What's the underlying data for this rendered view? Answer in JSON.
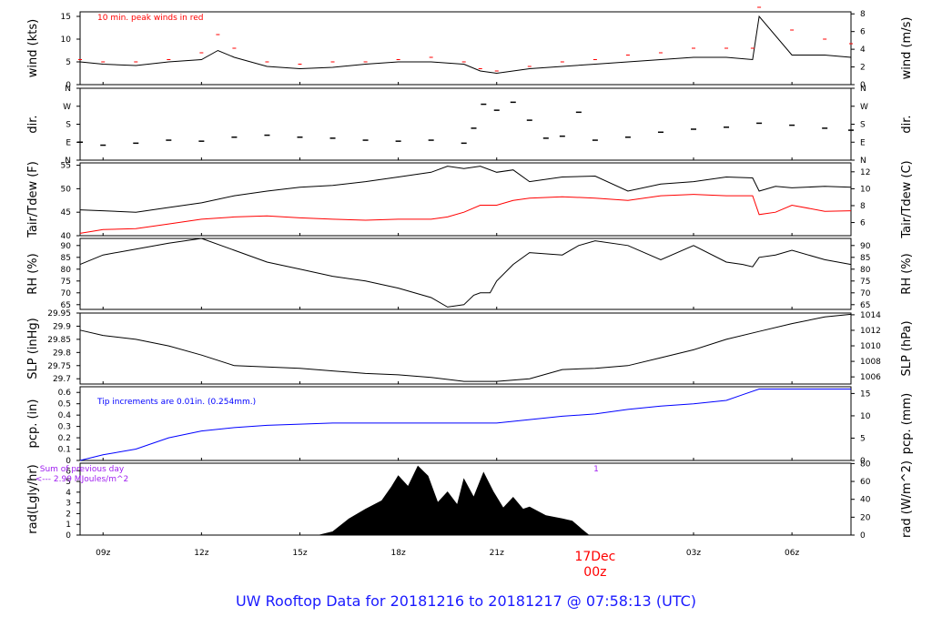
{
  "title": "UW Rooftop Data for 20181216  to  20181217 @ 07:58:13  (UTC)",
  "colors": {
    "series": "#000000",
    "dew": "#ff0000",
    "peak": "#ff0000",
    "pcp": "#0000ff",
    "rad": "#000000",
    "title": "#1a1aff",
    "rad_note": "#a020f0",
    "date": "#ff0000"
  },
  "chart_data": [
    {
      "type": "line",
      "panel": "wind",
      "ylabel": "wind (kts)",
      "ylabel_right": "wind (m/s)",
      "ylim": [
        0,
        16
      ],
      "yticks": [
        0,
        5,
        10,
        15
      ],
      "yticks_right": [
        0,
        2,
        4,
        6,
        8
      ],
      "ylim_right": [
        0,
        8.23
      ],
      "annotation": "10 min. peak winds in red",
      "x_hours": [
        8.3,
        9,
        10,
        11,
        12,
        12.5,
        13,
        14,
        15,
        16,
        17,
        18,
        19,
        20,
        20.5,
        21,
        22,
        23,
        24,
        25,
        26,
        27,
        28,
        28.8,
        29,
        30,
        31,
        31.8
      ],
      "series": [
        {
          "values": [
            5,
            4.5,
            4.2,
            5,
            5.5,
            7.5,
            6,
            4,
            3.5,
            3.8,
            4.5,
            5,
            5,
            4.5,
            3,
            2.5,
            3.5,
            4,
            4.5,
            5,
            5.5,
            6,
            6,
            5.5,
            15,
            6.5,
            6.5,
            6
          ]
        },
        {
          "name": "10 min. peak winds",
          "values": [
            5.5,
            5,
            5,
            5.5,
            7,
            11,
            8,
            5,
            4.5,
            5,
            5,
            5.5,
            6,
            5,
            3.5,
            3,
            4,
            5,
            5.5,
            6.5,
            7,
            8,
            8,
            8,
            17,
            12,
            10,
            9
          ]
        }
      ]
    },
    {
      "type": "scatter",
      "panel": "dir",
      "ylabel": "dir.",
      "ylabel_right": "dir.",
      "yticks": [
        "N",
        "E",
        "S",
        "W",
        "N"
      ],
      "ylim": [
        0,
        360
      ],
      "x_hours": [
        8.3,
        9,
        10,
        11,
        12,
        13,
        14,
        15,
        16,
        17,
        18,
        19,
        20,
        20.3,
        20.6,
        21,
        21.5,
        22,
        22.5,
        23,
        23.5,
        24,
        25,
        26,
        27,
        28,
        29,
        30,
        31,
        31.8
      ],
      "values": [
        90,
        75,
        85,
        100,
        95,
        115,
        125,
        115,
        110,
        100,
        95,
        100,
        85,
        160,
        280,
        250,
        290,
        200,
        110,
        120,
        240,
        100,
        115,
        140,
        155,
        165,
        185,
        175,
        160,
        150
      ]
    },
    {
      "type": "line",
      "panel": "temp",
      "ylabel": "Tair/Tdew (F)",
      "ylabel_right": "Tair/Tdew (C)",
      "ylim": [
        40,
        55.5
      ],
      "yticks": [
        40,
        45,
        50,
        55
      ],
      "yticks_right": [
        6,
        8,
        10,
        12
      ],
      "x_hours": [
        8.3,
        9,
        10,
        11,
        12,
        13,
        14,
        15,
        16,
        17,
        18,
        19,
        19.5,
        20,
        20.5,
        21,
        21.5,
        22,
        23,
        24,
        25,
        26,
        27,
        28,
        28.8,
        29,
        29.5,
        30,
        31,
        31.8
      ],
      "series": [
        {
          "name": "Tair",
          "values": [
            45.5,
            45.3,
            45,
            46,
            47,
            48.5,
            49.5,
            50.3,
            50.7,
            51.5,
            52.5,
            53.5,
            54.8,
            54.3,
            54.8,
            53.5,
            54,
            51.5,
            52.5,
            52.7,
            49.5,
            51,
            51.5,
            52.5,
            52.3,
            49.5,
            50.5,
            50.2,
            50.5,
            50.3
          ]
        },
        {
          "name": "Tdew",
          "values": [
            40.5,
            41.3,
            41.5,
            42.5,
            43.5,
            44,
            44.2,
            43.8,
            43.5,
            43.3,
            43.5,
            43.5,
            44,
            45,
            46.5,
            46.5,
            47.5,
            48,
            48.3,
            48,
            47.5,
            48.5,
            48.8,
            48.5,
            48.5,
            44.5,
            45,
            46.5,
            45.2,
            45.3
          ]
        }
      ]
    },
    {
      "type": "line",
      "panel": "rh",
      "ylabel": "RH (%)",
      "ylabel_right": "RH (%)",
      "ylim": [
        63,
        93
      ],
      "yticks": [
        65,
        70,
        75,
        80,
        85,
        90
      ],
      "x_hours": [
        8.3,
        9,
        10,
        11,
        12,
        13,
        14,
        15,
        16,
        17,
        18,
        19,
        19.5,
        20,
        20.3,
        20.5,
        20.8,
        21,
        21.5,
        22,
        23,
        23.5,
        24,
        25,
        26,
        27,
        28,
        28.5,
        28.8,
        29,
        29.5,
        30,
        31,
        31.8
      ],
      "values": [
        82,
        86,
        88.5,
        91,
        93,
        88,
        83,
        80,
        77,
        75,
        72,
        68,
        64,
        65,
        69,
        70,
        70,
        75,
        82,
        87,
        86,
        90,
        92,
        90,
        84,
        90,
        83,
        82,
        81,
        85,
        86,
        88,
        84,
        82
      ]
    },
    {
      "type": "line",
      "panel": "slp",
      "ylabel": "SLP (inHg)",
      "ylabel_right": "SLP (hPa)",
      "ylim": [
        29.68,
        29.95
      ],
      "yticks": [
        29.7,
        29.75,
        29.8,
        29.85,
        29.9,
        29.95
      ],
      "yticks_right": [
        1006,
        1008,
        1010,
        1012,
        1014
      ],
      "x_hours": [
        8.3,
        9,
        10,
        11,
        12,
        13,
        14,
        15,
        16,
        17,
        18,
        19,
        20,
        21,
        22,
        23,
        24,
        25,
        26,
        27,
        28,
        29,
        30,
        31,
        31.8
      ],
      "values": [
        29.885,
        29.865,
        29.85,
        29.825,
        29.79,
        29.75,
        29.745,
        29.74,
        29.73,
        29.72,
        29.715,
        29.705,
        29.69,
        29.69,
        29.7,
        29.735,
        29.74,
        29.75,
        29.78,
        29.81,
        29.85,
        29.88,
        29.91,
        29.935,
        29.945
      ]
    },
    {
      "type": "line",
      "panel": "pcp",
      "ylabel": "pcp. (in)",
      "ylabel_right": "pcp. (mm)",
      "ylim": [
        0,
        0.65
      ],
      "yticks": [
        0,
        0.1,
        0.2,
        0.3,
        0.4,
        0.5,
        0.6
      ],
      "yticks_right": [
        0,
        5,
        10,
        15
      ],
      "annotation": "Tip increments are 0.01in. (0.254mm.)",
      "x_hours": [
        8.3,
        9,
        10,
        11,
        12,
        13,
        14,
        15,
        16,
        17,
        18,
        19,
        20,
        21,
        22,
        23,
        24,
        25,
        26,
        27,
        28,
        28.5,
        29,
        30,
        31,
        31.8
      ],
      "values": [
        0,
        0.05,
        0.1,
        0.2,
        0.26,
        0.29,
        0.31,
        0.32,
        0.33,
        0.33,
        0.33,
        0.33,
        0.33,
        0.33,
        0.36,
        0.39,
        0.41,
        0.45,
        0.48,
        0.5,
        0.53,
        0.58,
        0.63,
        0.63,
        0.63,
        0.63
      ]
    },
    {
      "type": "area",
      "panel": "rad",
      "ylabel": "rad(Lgly/hr)",
      "ylabel_right": "rad (W/m^2)",
      "ylim": [
        0,
        6.7
      ],
      "yticks": [
        0,
        1,
        2,
        3,
        4,
        5,
        6
      ],
      "yticks_right": [
        0,
        20,
        40,
        60,
        80
      ],
      "note_line1": "Sum of previous day",
      "note_line2": "<--- 2.99 MJoules/m^2",
      "marker": "1",
      "x_hours": [
        15.6,
        16,
        16.5,
        17,
        17.5,
        17.8,
        18,
        18.3,
        18.6,
        18.9,
        19.2,
        19.5,
        19.8,
        20,
        20.3,
        20.6,
        20.9,
        21.2,
        21.5,
        21.8,
        22,
        22.5,
        23,
        23.3,
        23.6,
        23.8
      ],
      "values": [
        0,
        0.3,
        1.5,
        2.4,
        3.2,
        4.5,
        5.5,
        4.5,
        6.4,
        5.5,
        3,
        4,
        2.8,
        5.2,
        3.5,
        5.8,
        4,
        2.5,
        3.5,
        2.4,
        2.6,
        1.8,
        1.5,
        1.3,
        0.5,
        0
      ]
    }
  ],
  "x_axis": {
    "ticks": [
      {
        "hour": 9,
        "label": "09z"
      },
      {
        "hour": 12,
        "label": "12z"
      },
      {
        "hour": 15,
        "label": "15z"
      },
      {
        "hour": 18,
        "label": "18z"
      },
      {
        "hour": 21,
        "label": "21z"
      },
      {
        "hour": 27,
        "label": "03z"
      },
      {
        "hour": 30,
        "label": "06z"
      }
    ],
    "date_label": "17Dec",
    "date_hour_label": "00z",
    "date_hour": 24
  }
}
